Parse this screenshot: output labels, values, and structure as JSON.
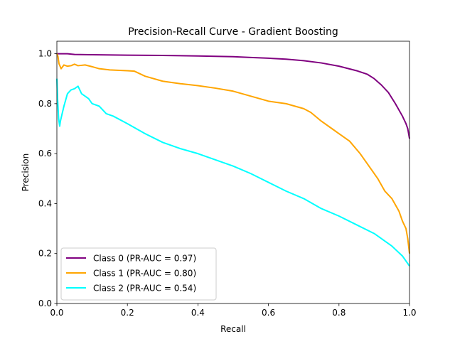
{
  "chart_data": {
    "type": "line",
    "title": "Precision-Recall Curve - Gradient Boosting",
    "xlabel": "Recall",
    "ylabel": "Precision",
    "xlim": [
      0.0,
      1.0
    ],
    "ylim": [
      0.0,
      1.05
    ],
    "x_ticks": [
      "0.0",
      "0.2",
      "0.4",
      "0.6",
      "0.8",
      "1.0"
    ],
    "y_ticks": [
      "0.0",
      "0.2",
      "0.4",
      "0.6",
      "0.8",
      "1.0"
    ],
    "grid": false,
    "legend_position": "lower-left",
    "series": [
      {
        "name": "Class 0 (PR-AUC = 0.97)",
        "color": "#800080",
        "points": [
          [
            0.0,
            1.0
          ],
          [
            0.01,
            1.0
          ],
          [
            0.03,
            1.0
          ],
          [
            0.05,
            0.997
          ],
          [
            0.1,
            0.996
          ],
          [
            0.2,
            0.994
          ],
          [
            0.3,
            0.993
          ],
          [
            0.4,
            0.991
          ],
          [
            0.5,
            0.988
          ],
          [
            0.55,
            0.985
          ],
          [
            0.6,
            0.982
          ],
          [
            0.65,
            0.978
          ],
          [
            0.7,
            0.972
          ],
          [
            0.75,
            0.963
          ],
          [
            0.8,
            0.95
          ],
          [
            0.85,
            0.932
          ],
          [
            0.88,
            0.918
          ],
          [
            0.9,
            0.9
          ],
          [
            0.92,
            0.875
          ],
          [
            0.94,
            0.845
          ],
          [
            0.96,
            0.8
          ],
          [
            0.98,
            0.75
          ],
          [
            0.99,
            0.72
          ],
          [
            0.995,
            0.7
          ],
          [
            1.0,
            0.66
          ]
        ]
      },
      {
        "name": "Class 1 (PR-AUC = 0.80)",
        "color": "#ffa500",
        "points": [
          [
            0.0,
            1.0
          ],
          [
            0.003,
            0.99
          ],
          [
            0.006,
            0.96
          ],
          [
            0.012,
            0.94
          ],
          [
            0.02,
            0.955
          ],
          [
            0.03,
            0.95
          ],
          [
            0.04,
            0.952
          ],
          [
            0.05,
            0.958
          ],
          [
            0.06,
            0.952
          ],
          [
            0.08,
            0.955
          ],
          [
            0.1,
            0.948
          ],
          [
            0.12,
            0.94
          ],
          [
            0.15,
            0.935
          ],
          [
            0.2,
            0.932
          ],
          [
            0.22,
            0.93
          ],
          [
            0.25,
            0.91
          ],
          [
            0.3,
            0.89
          ],
          [
            0.35,
            0.88
          ],
          [
            0.4,
            0.872
          ],
          [
            0.45,
            0.862
          ],
          [
            0.5,
            0.85
          ],
          [
            0.55,
            0.83
          ],
          [
            0.6,
            0.81
          ],
          [
            0.65,
            0.8
          ],
          [
            0.7,
            0.78
          ],
          [
            0.72,
            0.765
          ],
          [
            0.75,
            0.73
          ],
          [
            0.78,
            0.7
          ],
          [
            0.8,
            0.68
          ],
          [
            0.83,
            0.65
          ],
          [
            0.86,
            0.6
          ],
          [
            0.89,
            0.54
          ],
          [
            0.91,
            0.5
          ],
          [
            0.93,
            0.45
          ],
          [
            0.95,
            0.42
          ],
          [
            0.97,
            0.37
          ],
          [
            0.98,
            0.33
          ],
          [
            0.99,
            0.3
          ],
          [
            0.995,
            0.26
          ],
          [
            1.0,
            0.2
          ]
        ]
      },
      {
        "name": "Class 2 (PR-AUC = 0.54)",
        "color": "#00ffff",
        "points": [
          [
            0.0,
            0.9
          ],
          [
            0.002,
            0.82
          ],
          [
            0.005,
            0.74
          ],
          [
            0.008,
            0.71
          ],
          [
            0.01,
            0.73
          ],
          [
            0.015,
            0.76
          ],
          [
            0.02,
            0.79
          ],
          [
            0.03,
            0.84
          ],
          [
            0.04,
            0.855
          ],
          [
            0.05,
            0.86
          ],
          [
            0.06,
            0.87
          ],
          [
            0.07,
            0.84
          ],
          [
            0.08,
            0.83
          ],
          [
            0.09,
            0.82
          ],
          [
            0.1,
            0.8
          ],
          [
            0.12,
            0.79
          ],
          [
            0.14,
            0.76
          ],
          [
            0.16,
            0.75
          ],
          [
            0.2,
            0.72
          ],
          [
            0.25,
            0.68
          ],
          [
            0.3,
            0.645
          ],
          [
            0.35,
            0.62
          ],
          [
            0.4,
            0.6
          ],
          [
            0.45,
            0.575
          ],
          [
            0.5,
            0.55
          ],
          [
            0.55,
            0.52
          ],
          [
            0.6,
            0.485
          ],
          [
            0.65,
            0.45
          ],
          [
            0.7,
            0.42
          ],
          [
            0.75,
            0.38
          ],
          [
            0.8,
            0.35
          ],
          [
            0.85,
            0.315
          ],
          [
            0.9,
            0.28
          ],
          [
            0.95,
            0.23
          ],
          [
            0.98,
            0.19
          ],
          [
            1.0,
            0.15
          ]
        ]
      }
    ]
  }
}
